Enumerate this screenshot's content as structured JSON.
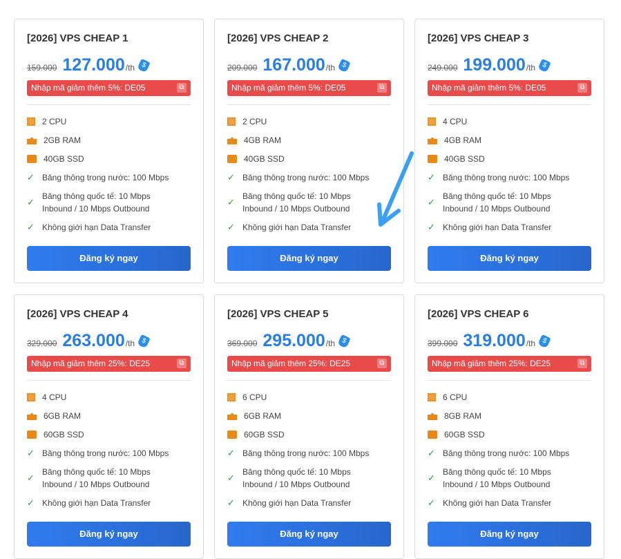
{
  "unit": "/th",
  "button_label": "Đăng ký ngay",
  "tag_glyph": "$",
  "copy_glyph": "⧉",
  "check_glyph": "✓",
  "cards": [
    {
      "title": "[2026] VPS CHEAP 1",
      "old_price": "159.000",
      "price": "127.000",
      "promo": "Nhập mã giảm thêm 5%:  DE05",
      "cpu": "2 CPU",
      "ram": "2GB RAM",
      "ssd": "40GB SSD"
    },
    {
      "title": "[2026] VPS CHEAP 2",
      "old_price": "209.000",
      "price": "167.000",
      "promo": "Nhập mã giảm thêm 5%:  DE05",
      "cpu": "2 CPU",
      "ram": "4GB RAM",
      "ssd": "40GB SSD"
    },
    {
      "title": "[2026] VPS CHEAP 3",
      "old_price": "249.000",
      "price": "199.000",
      "promo": "Nhập mã giảm thêm 5%:  DE05",
      "cpu": "4 CPU",
      "ram": "4GB RAM",
      "ssd": "40GB SSD"
    },
    {
      "title": "[2026] VPS CHEAP 4",
      "old_price": "329.000",
      "price": "263.000",
      "promo": "Nhập mã giảm thêm 25%:  DE25",
      "cpu": "4 CPU",
      "ram": "6GB RAM",
      "ssd": "60GB SSD"
    },
    {
      "title": "[2026] VPS CHEAP 5",
      "old_price": "369.000",
      "price": "295.000",
      "promo": "Nhập mã giảm thêm 25%:  DE25",
      "cpu": "6 CPU",
      "ram": "6GB RAM",
      "ssd": "60GB SSD"
    },
    {
      "title": "[2026] VPS CHEAP 6",
      "old_price": "399.000",
      "price": "319.000",
      "promo": "Nhập mã giảm thêm 25%:  DE25",
      "cpu": "6 CPU",
      "ram": "8GB RAM",
      "ssd": "60GB SSD"
    }
  ],
  "features": [
    "Băng thông trong nước: 100 Mbps",
    "Băng thông quốc tế: 10 Mbps Inbound / 10 Mbps Outbound",
    "Không giới hạn Data Transfer"
  ]
}
